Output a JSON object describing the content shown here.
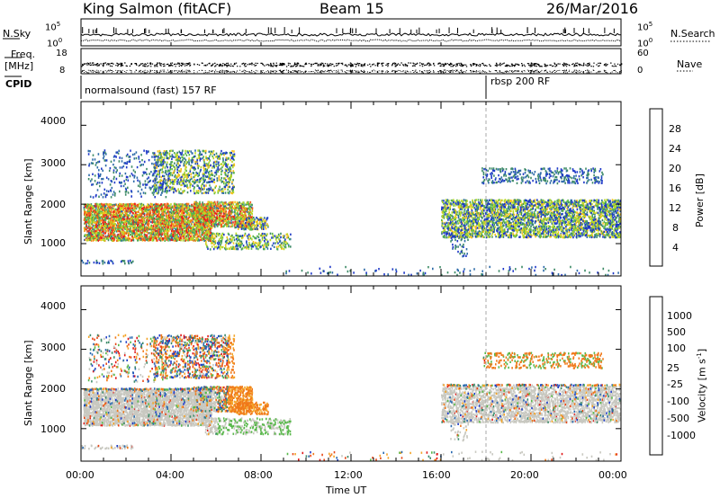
{
  "header": {
    "station": "King Salmon (fitACF)",
    "beam": "Beam 15",
    "date": "26/Mar/2016"
  },
  "chart_data": [
    {
      "type": "line",
      "name": "noise-panel",
      "left_label": "N.Sky",
      "right_label": "N.Search",
      "left_ticks": [
        "10^5",
        "10^0"
      ],
      "right_ticks": [
        "10^5",
        "10^0"
      ]
    },
    {
      "type": "scatter",
      "name": "frequency-panel",
      "left_label_top": "Freq.",
      "left_label_bottom": "[MHz]",
      "right_label": "Nave",
      "left_ticks": [
        "18",
        "8"
      ],
      "right_ticks": [
        "60",
        "0"
      ]
    },
    {
      "type": "table",
      "name": "cpid-strip",
      "label": "CPID",
      "segments": [
        {
          "start_hour": 0.0,
          "text": "normalsound (fast) 157 RF"
        },
        {
          "start_hour": 18.0,
          "text": "rbsp 200 RF"
        }
      ]
    },
    {
      "type": "heatmap",
      "name": "power-panel",
      "ylabel": "Slant Range [km]",
      "yticks": [
        "4000",
        "3000",
        "2000",
        "1000"
      ],
      "ylim": [
        180,
        4600
      ],
      "xlim": [
        0,
        24
      ],
      "colorbar": {
        "label": "Power [dB]",
        "ticks": [
          "28",
          "24",
          "20",
          "16",
          "12",
          "8",
          "4"
        ],
        "colors": [
          "#e8201c",
          "#f05a18",
          "#f4881c",
          "#f5c01a",
          "#b8d828",
          "#5ab848",
          "#3c8a66",
          "#2c6aa8",
          "#1e38c8"
        ]
      }
    },
    {
      "type": "heatmap",
      "name": "velocity-panel",
      "ylabel": "Slant Range [km]",
      "yticks": [
        "4000",
        "3000",
        "2000",
        "1000"
      ],
      "ylim": [
        180,
        4600
      ],
      "xlim": [
        0,
        24
      ],
      "xticks": [
        "00:00",
        "04:00",
        "08:00",
        "12:00",
        "16:00",
        "20:00",
        "00:00"
      ],
      "xlabel": "Time UT",
      "colorbar": {
        "label": "Velocity [m s^-1]",
        "ticks": [
          "1000",
          "500",
          "100",
          "25",
          "-25",
          "-100",
          "-500",
          "-1000"
        ],
        "colors": [
          "#1e3cc8",
          "#2a6ab0",
          "#3c8a6a",
          "#58b84a",
          "#c8c8c0",
          "#f4a428",
          "#f07818",
          "#e84818",
          "#e01818"
        ]
      }
    }
  ]
}
